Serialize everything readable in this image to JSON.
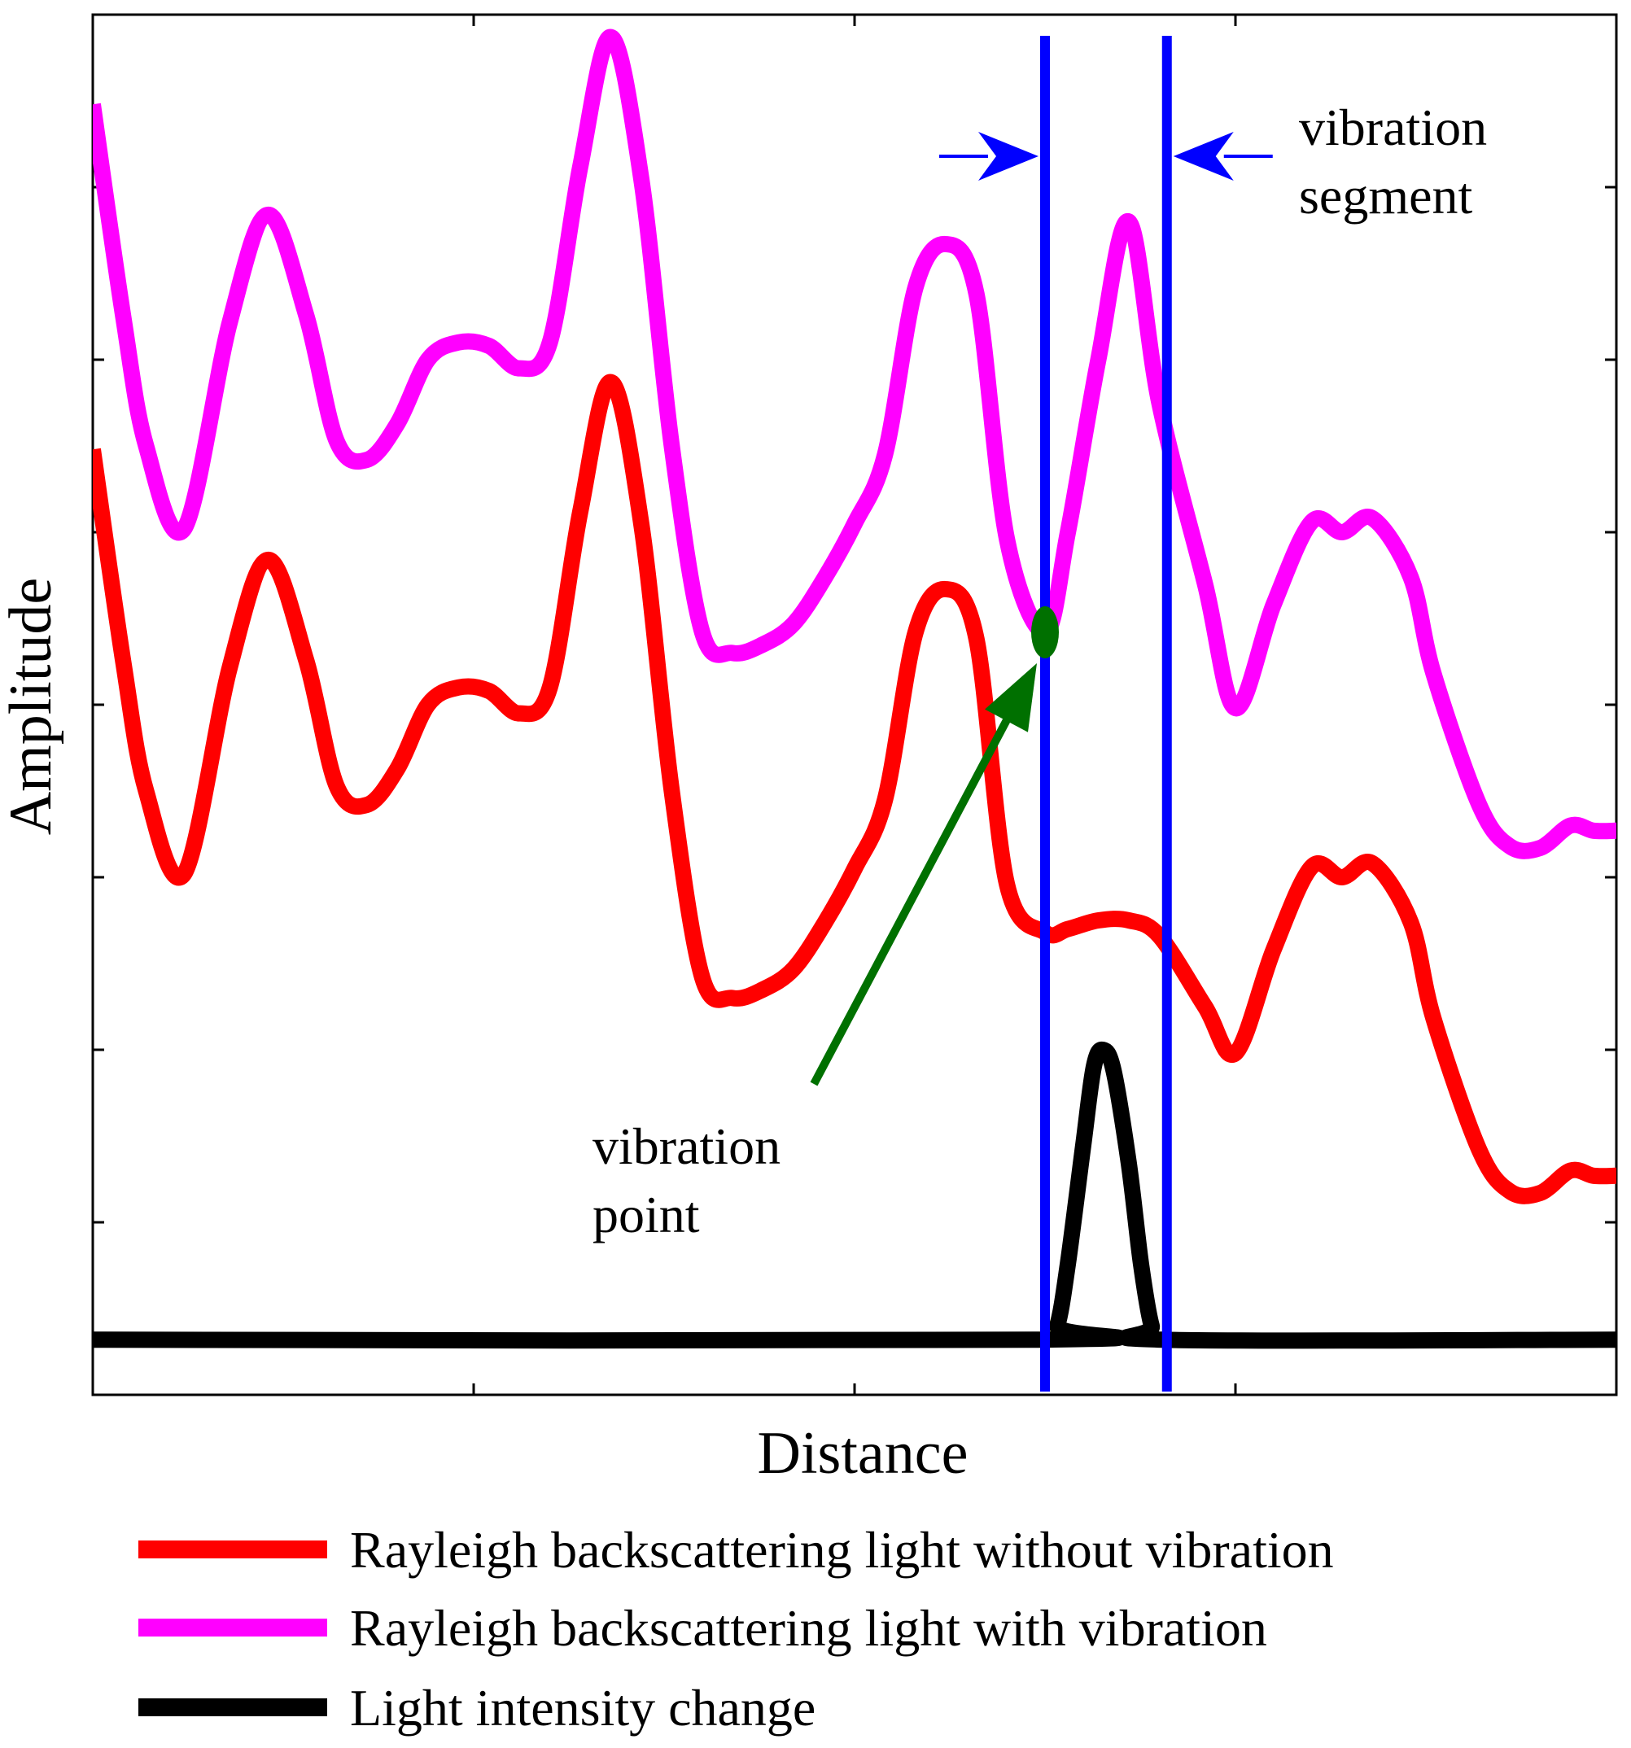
{
  "chart_data": {
    "type": "line",
    "title": "",
    "xlabel": "Distance",
    "ylabel": "Amplitude",
    "xlim": [
      0,
      100
    ],
    "ylim": [
      0,
      8
    ],
    "xticks": [
      25,
      50,
      75
    ],
    "yticks": [
      1,
      2,
      3,
      4,
      5,
      6,
      7
    ],
    "tick_labels_shown": false,
    "grid": false,
    "legend_position": "bottom",
    "series": [
      {
        "name": "Rayleigh backscattering light without vibration",
        "color": "#ff0000",
        "x": [
          0,
          2,
          3.5,
          6,
          9,
          11.5,
          14,
          16,
          18,
          20,
          22,
          24,
          26,
          28,
          30,
          32,
          34,
          36,
          38,
          40,
          42,
          44,
          46,
          48,
          50,
          52,
          54,
          56,
          58,
          60,
          62.5,
          64,
          66,
          68,
          70,
          73,
          75,
          77.5,
          80,
          82,
          84,
          86.5,
          88,
          91,
          93,
          95,
          97,
          98.5,
          100
        ],
        "y": [
          5.48,
          4.25,
          3.5,
          3.02,
          4.22,
          4.84,
          4.26,
          3.53,
          3.42,
          3.63,
          4.0,
          4.1,
          4.08,
          3.95,
          4.1,
          5.12,
          5.87,
          5.05,
          3.5,
          2.42,
          2.3,
          2.35,
          2.47,
          2.73,
          3.05,
          3.45,
          4.42,
          4.67,
          4.38,
          2.96,
          2.68,
          2.7,
          2.75,
          2.75,
          2.66,
          2.25,
          1.98,
          2.58,
          3.06,
          3.0,
          3.08,
          2.74,
          2.18,
          1.42,
          1.18,
          1.17,
          1.3,
          1.27,
          1.27
        ]
      },
      {
        "name": "Rayleigh backscattering light with vibration",
        "color": "#ff00ff",
        "x": [
          0,
          2,
          3.5,
          6,
          9,
          11.5,
          14,
          16,
          18,
          20,
          22,
          24,
          26,
          28,
          30,
          32,
          34,
          36,
          38,
          40,
          42,
          44,
          46,
          48,
          50,
          52,
          54,
          56,
          58,
          60,
          62.5,
          64,
          66,
          68,
          70,
          73,
          75,
          77.5,
          80,
          82,
          84,
          86.5,
          88,
          91,
          93,
          95,
          97,
          98.5,
          100
        ],
        "y": [
          7.48,
          6.25,
          5.5,
          5.02,
          6.22,
          6.84,
          6.26,
          5.53,
          5.42,
          5.63,
          6.0,
          6.1,
          6.08,
          5.95,
          6.1,
          7.12,
          7.87,
          7.05,
          5.5,
          4.42,
          4.3,
          4.35,
          4.47,
          4.73,
          5.05,
          5.45,
          6.42,
          6.67,
          6.38,
          4.96,
          4.42,
          5.0,
          6.0,
          6.8,
          5.75,
          4.7,
          3.98,
          4.58,
          5.06,
          5.0,
          5.08,
          4.74,
          4.18,
          3.42,
          3.18,
          3.17,
          3.3,
          3.27,
          3.27
        ]
      },
      {
        "name": "Light intensity change",
        "color": "#000000",
        "x": [
          0,
          62.5,
          63.3,
          64,
          65,
          65.7,
          66.3,
          67,
          68,
          68.8,
          69.5,
          70.2,
          100
        ],
        "y": [
          0.32,
          0.32,
          0.4,
          0.76,
          1.44,
          1.9,
          2.0,
          1.88,
          1.34,
          0.76,
          0.4,
          0.32,
          0.32
        ]
      }
    ],
    "vertical_lines": [
      {
        "label": "vibration segment left boundary",
        "x": 62.5,
        "color": "#0000ff"
      },
      {
        "label": "vibration segment right boundary",
        "x": 70.5,
        "color": "#0000ff"
      }
    ],
    "vibration_point": {
      "x": 62.5,
      "y": 4.42,
      "color": "#007000"
    },
    "annotations": [
      {
        "id": "segment",
        "lines": [
          "vibration",
          "segment"
        ]
      },
      {
        "id": "point",
        "lines": [
          "vibration",
          "point"
        ]
      }
    ],
    "colors": {
      "arrow_blue": "#0000ff",
      "arrow_green": "#007000"
    }
  }
}
